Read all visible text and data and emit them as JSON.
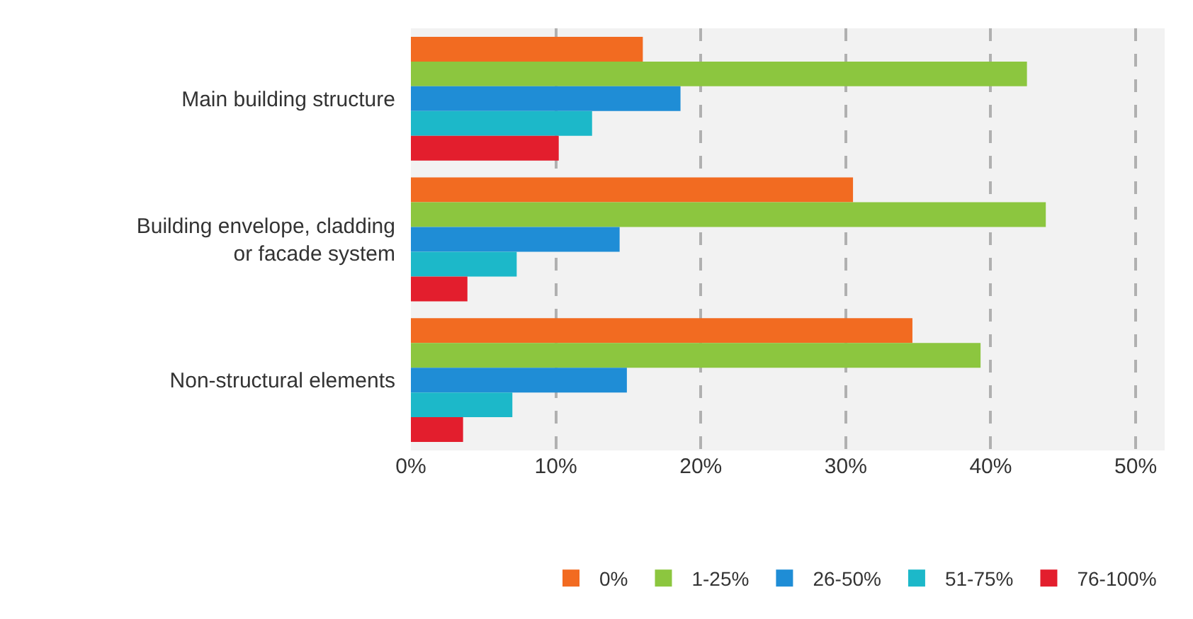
{
  "chart_data": {
    "type": "bar",
    "orientation": "horizontal",
    "categories": [
      "Main building structure",
      "Building envelope, cladding or facade system",
      "Non-structural elements"
    ],
    "series": [
      {
        "name": "0%",
        "color": "#f26b21",
        "values": [
          16.0,
          30.5,
          34.6
        ]
      },
      {
        "name": "1-25%",
        "color": "#8cc63f",
        "values": [
          42.5,
          43.8,
          39.3
        ]
      },
      {
        "name": "26-50%",
        "color": "#1f8dd6",
        "values": [
          18.6,
          14.4,
          14.9
        ]
      },
      {
        "name": "51-75%",
        "color": "#1cb8c9",
        "values": [
          12.5,
          7.3,
          7.0
        ]
      },
      {
        "name": "76-100%",
        "color": "#e31e2d",
        "values": [
          10.2,
          3.9,
          3.6
        ]
      }
    ],
    "xlim": [
      0,
      52
    ],
    "xticks": [
      {
        "value": 0,
        "label": "0%"
      },
      {
        "value": 10,
        "label": "10%"
      },
      {
        "value": 20,
        "label": "20%"
      },
      {
        "value": 30,
        "label": "30%"
      },
      {
        "value": 40,
        "label": "40%"
      },
      {
        "value": 50,
        "label": "50%"
      }
    ],
    "grid": "x",
    "legend": "bottom"
  }
}
